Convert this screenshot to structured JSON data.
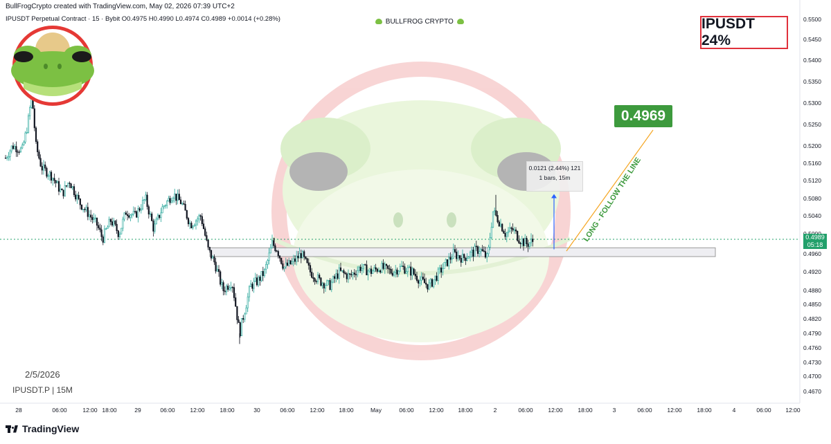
{
  "header": {
    "created_by": "BullFrogCrypto created with TradingView.com, May 02, 2026 07:39 UTC+2",
    "legend_line": "IPUSDT Perpetual Contract · 15 · Bybit  O0.4975  H0.4990  L0.4974  C0.4989  +0.0014 (+0.28%)",
    "brand": "BULLFROG CRYPTO"
  },
  "ticker_box": "IPUSDT 24%",
  "target_price": "0.4969",
  "annotation_text": "LONG - FOLLOW THE LINE",
  "measure_tool": {
    "line1": "0.0121 (2.44%) 121",
    "line2": "1 bars, 15m"
  },
  "watermark": {
    "date": "2/5/2026",
    "symbol": "IPUSDT.P | 15M"
  },
  "current_price": {
    "price": "0.4989",
    "countdown": "05:18"
  },
  "footer": {
    "logo_text": "TradingView"
  },
  "colors": {
    "up": "#26a69a",
    "down": "#131722",
    "target_badge": "#3d9a3d",
    "ticker_border": "#e0303a",
    "zone_fill": "#eeeef2",
    "arrow": "#2962ff",
    "trendline": "#f5a623"
  },
  "chart_data": {
    "type": "candlestick",
    "price_axis": {
      "min": 0.467,
      "max": 0.55,
      "ticks": [
        "0.5500",
        "0.5450",
        "0.5400",
        "0.5350",
        "0.5300",
        "0.5250",
        "0.5200",
        "0.5160",
        "0.5120",
        "0.5080",
        "0.5040",
        "0.5000",
        "0.4960",
        "0.4920",
        "0.4880",
        "0.4850",
        "0.4820",
        "0.4790",
        "0.4760",
        "0.4730",
        "0.4700",
        "0.4670"
      ]
    },
    "time_axis": {
      "labels": [
        "28",
        "06:00",
        "12:00",
        "18:00",
        "29",
        "06:00",
        "12:00",
        "18:00",
        "30",
        "06:00",
        "12:00",
        "18:00",
        "May",
        "06:00",
        "12:00",
        "18:00",
        "2",
        "06:00",
        "12:00",
        "18:00",
        "3",
        "06:00",
        "12:00",
        "18:00",
        "4",
        "06:00",
        "12:00"
      ]
    },
    "path": [
      [
        0,
        0.515
      ],
      [
        18,
        0.52
      ],
      [
        32,
        0.519
      ],
      [
        40,
        0.525
      ],
      [
        46,
        0.532
      ],
      [
        52,
        0.52
      ],
      [
        60,
        0.515
      ],
      [
        75,
        0.513
      ],
      [
        90,
        0.509
      ],
      [
        100,
        0.512
      ],
      [
        115,
        0.507
      ],
      [
        130,
        0.504
      ],
      [
        140,
        0.502
      ],
      [
        148,
        0.499
      ],
      [
        160,
        0.503
      ],
      [
        172,
        0.5
      ],
      [
        182,
        0.505
      ],
      [
        195,
        0.504
      ],
      [
        210,
        0.508
      ],
      [
        222,
        0.501
      ],
      [
        235,
        0.506
      ],
      [
        250,
        0.509
      ],
      [
        262,
        0.507
      ],
      [
        275,
        0.502
      ],
      [
        290,
        0.504
      ],
      [
        300,
        0.497
      ],
      [
        310,
        0.494
      ],
      [
        322,
        0.488
      ],
      [
        335,
        0.49
      ],
      [
        346,
        0.479
      ],
      [
        352,
        0.483
      ],
      [
        362,
        0.489
      ],
      [
        372,
        0.49
      ],
      [
        382,
        0.492
      ],
      [
        393,
        0.498
      ],
      [
        400,
        0.497
      ],
      [
        410,
        0.493
      ],
      [
        422,
        0.494
      ],
      [
        435,
        0.496
      ],
      [
        448,
        0.492
      ],
      [
        462,
        0.49
      ],
      [
        476,
        0.489
      ],
      [
        490,
        0.492
      ],
      [
        505,
        0.491
      ],
      [
        520,
        0.493
      ],
      [
        535,
        0.492
      ],
      [
        550,
        0.493
      ],
      [
        565,
        0.492
      ],
      [
        580,
        0.493
      ],
      [
        595,
        0.492
      ],
      [
        608,
        0.49
      ],
      [
        620,
        0.489
      ],
      [
        635,
        0.492
      ],
      [
        645,
        0.494
      ],
      [
        655,
        0.496
      ],
      [
        668,
        0.495
      ],
      [
        680,
        0.496
      ],
      [
        692,
        0.497
      ],
      [
        704,
        0.495
      ],
      [
        712,
        0.505
      ],
      [
        720,
        0.503
      ],
      [
        730,
        0.5
      ],
      [
        740,
        0.501
      ],
      [
        750,
        0.499
      ],
      [
        760,
        0.498
      ],
      [
        770,
        0.4985
      ]
    ],
    "spikes": [
      [
        46,
        0.5332,
        "high"
      ],
      [
        312,
        0.494,
        "low"
      ],
      [
        346,
        0.4768,
        "low"
      ],
      [
        716,
        0.5088,
        "high"
      ],
      [
        396,
        0.4992,
        "high"
      ]
    ],
    "support_zone": {
      "top": 0.4972,
      "bottom": 0.496
    },
    "current_price_line": 0.4989,
    "measure": {
      "from": 0.4969,
      "to": 0.509
    }
  }
}
